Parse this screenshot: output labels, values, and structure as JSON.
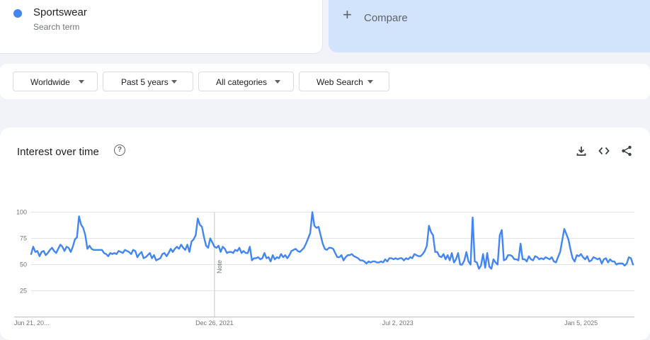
{
  "term": {
    "name": "Sportswear",
    "subtitle": "Search term",
    "color": "#4285f4"
  },
  "compare": {
    "label": "Compare",
    "icon": "plus-icon"
  },
  "filters": {
    "region": "Worldwide",
    "time": "Past 5 years",
    "category": "All categories",
    "property": "Web Search"
  },
  "panel": {
    "title": "Interest over time",
    "icons": [
      "help-icon",
      "download-icon",
      "embed-code-icon",
      "share-icon"
    ]
  },
  "chart_data": {
    "type": "line",
    "title": "Interest over time",
    "ylim": [
      0,
      100
    ],
    "y_ticks": [
      "100",
      "75",
      "50",
      "25"
    ],
    "x_ticks": [
      "Jun 21, 20...",
      "Dec 26, 2021",
      "Jul 2, 2023",
      "Jan 5, 2025"
    ],
    "x_range": [
      "2020-06-21",
      "2025-06-15"
    ],
    "grid": true,
    "annotations": [
      {
        "label": "Note",
        "date": "2021-12-26"
      }
    ],
    "series": [
      {
        "color": "#4285f4",
        "values": [
          60,
          67,
          62,
          63,
          58,
          62,
          63,
          59,
          61,
          64,
          66,
          63,
          61,
          65,
          69,
          67,
          63,
          67,
          66,
          62,
          67,
          74,
          76,
          96,
          88,
          85,
          78,
          65,
          68,
          65,
          64,
          64,
          64,
          64,
          64,
          61,
          60,
          58,
          61,
          60,
          61,
          60,
          63,
          62,
          61,
          64,
          63,
          62,
          60,
          64,
          63,
          57,
          60,
          62,
          56,
          57,
          59,
          61,
          56,
          59,
          54,
          55,
          56,
          60,
          61,
          58,
          61,
          65,
          62,
          65,
          67,
          65,
          69,
          66,
          64,
          69,
          62,
          72,
          74,
          78,
          94,
          88,
          86,
          76,
          68,
          66,
          75,
          71,
          67,
          66,
          68,
          62,
          67,
          65,
          61,
          62,
          62,
          61,
          64,
          63,
          66,
          61,
          63,
          61,
          61,
          67,
          54,
          56,
          56,
          57,
          55,
          56,
          61,
          56,
          57,
          53,
          59,
          55,
          57,
          56,
          60,
          57,
          59,
          56,
          59,
          63,
          64,
          65,
          63,
          62,
          64,
          66,
          70,
          75,
          80,
          100,
          87,
          85,
          86,
          78,
          70,
          65,
          64,
          66,
          66,
          65,
          61,
          57,
          57,
          59,
          54,
          57,
          59,
          59,
          60,
          58,
          57,
          56,
          54,
          54,
          53,
          51,
          53,
          52,
          53,
          53,
          52,
          52,
          53,
          52,
          55,
          53,
          56,
          56,
          55,
          56,
          55,
          56,
          56,
          54,
          56,
          55,
          57,
          56,
          60,
          59,
          58,
          58,
          60,
          63,
          68,
          87,
          81,
          78,
          62,
          62,
          58,
          57,
          60,
          55,
          59,
          54,
          61,
          52,
          55,
          61,
          50,
          50,
          54,
          62,
          53,
          50,
          95,
          53,
          52,
          46,
          49,
          60,
          47,
          61,
          48,
          46,
          55,
          52,
          50,
          78,
          83,
          54,
          55,
          59,
          59,
          58,
          55,
          55,
          54,
          70,
          55,
          55,
          53,
          58,
          55,
          54,
          58,
          57,
          55,
          56,
          55,
          57,
          56,
          55,
          57,
          53,
          52,
          57,
          62,
          73,
          84,
          79,
          74,
          64,
          56,
          53,
          59,
          58,
          60,
          57,
          55,
          58,
          53,
          54,
          57,
          56,
          55,
          56,
          51,
          55,
          56,
          52,
          55,
          53,
          53,
          50,
          51,
          51,
          51,
          49,
          51,
          57,
          56,
          50
        ]
      }
    ]
  }
}
